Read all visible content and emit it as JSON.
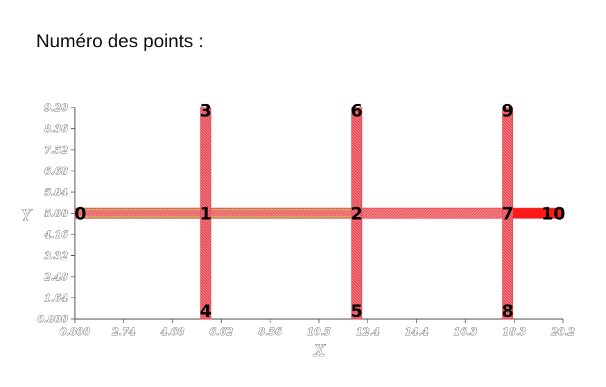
{
  "title": "Numéro des points :",
  "colors": {
    "pipe": "#e8474f",
    "pipe_light": "#f08a8a",
    "pipe_highlight": "#a8c94a",
    "pipe_end": "#ff1a1a",
    "axis": "#555555"
  },
  "chart_data": {
    "type": "network",
    "xlabel": "X",
    "ylabel": "Y",
    "xlim": [
      0.8,
      20.2
    ],
    "ylim": [
      0.8,
      9.2
    ],
    "x_ticks": [
      "0.800",
      "2.74",
      "4.68",
      "6.62",
      "8.56",
      "10.5",
      "12.4",
      "14.4",
      "16.3",
      "18.3",
      "20.2"
    ],
    "y_ticks": [
      "9.20",
      "8.36",
      "7.52",
      "6.68",
      "5.84",
      "5.00",
      "4.16",
      "3.32",
      "2.48",
      "1.64",
      "0.800"
    ],
    "points": [
      {
        "label": "0",
        "x": 0.8,
        "y": 5.0
      },
      {
        "label": "1",
        "x": 6.0,
        "y": 5.0
      },
      {
        "label": "2",
        "x": 12.0,
        "y": 5.0
      },
      {
        "label": "3",
        "x": 6.0,
        "y": 9.2
      },
      {
        "label": "4",
        "x": 6.0,
        "y": 0.8
      },
      {
        "label": "5",
        "x": 12.0,
        "y": 0.8
      },
      {
        "label": "6",
        "x": 12.0,
        "y": 9.2
      },
      {
        "label": "7",
        "x": 18.0,
        "y": 5.0
      },
      {
        "label": "8",
        "x": 18.0,
        "y": 0.8
      },
      {
        "label": "9",
        "x": 18.0,
        "y": 9.2
      },
      {
        "label": "10",
        "x": 20.2,
        "y": 5.0
      }
    ],
    "segments": [
      {
        "from": "0",
        "to": "1",
        "style": "highlight"
      },
      {
        "from": "1",
        "to": "2",
        "style": "highlight"
      },
      {
        "from": "2",
        "to": "7",
        "style": "normal"
      },
      {
        "from": "7",
        "to": "10",
        "style": "end"
      },
      {
        "from": "3",
        "to": "4",
        "style": "normal"
      },
      {
        "from": "6",
        "to": "5",
        "style": "normal"
      },
      {
        "from": "9",
        "to": "8",
        "style": "normal"
      }
    ]
  }
}
